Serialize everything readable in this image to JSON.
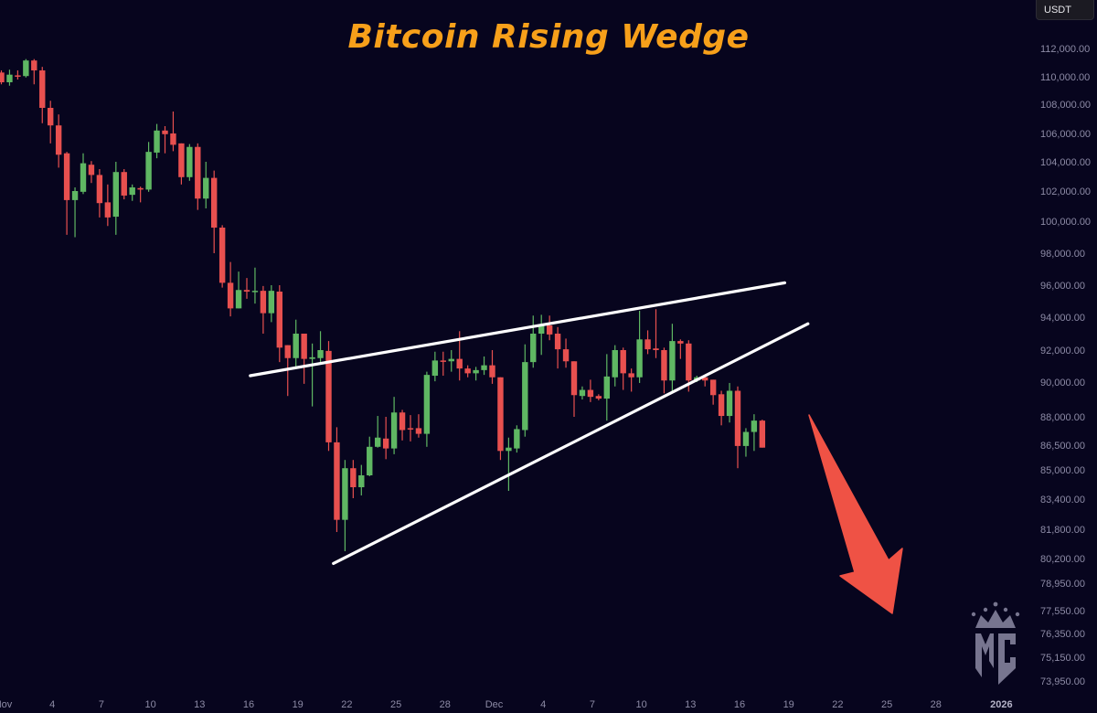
{
  "title": "Bitcoin Rising Wedge",
  "currency_label": "USDT",
  "logo_text": "MC",
  "colors": {
    "background": "#07051e",
    "up": "#5fb763",
    "down": "#e8504f",
    "title": "#f7a01a",
    "trendline": "#ffffff",
    "arrow": "#ef5245",
    "axis_text": "#8d8ba6",
    "logo": "#77758f"
  },
  "chart_data": {
    "type": "candlestick",
    "title": "Bitcoin Rising Wedge",
    "interval": "12h",
    "ylim": [
      73950,
      112000
    ],
    "y_scale": "non-uniform price scale",
    "grid": false,
    "y_ticks": [
      "112,000.00",
      "110,000.00",
      "108,000.00",
      "106,000.00",
      "104,000.00",
      "102,000.00",
      "100,000.00",
      "98,000.00",
      "96,000.00",
      "94,000.00",
      "92,000.00",
      "90,000.00",
      "88,000.00",
      "86,500.00",
      "85,000.00",
      "83,400.00",
      "81,800.00",
      "80,200.00",
      "78,950.00",
      "77,550.00",
      "76,350.00",
      "75,150.00",
      "73,950.00"
    ],
    "x_ticks": [
      "Nov",
      "4",
      "7",
      "10",
      "13",
      "16",
      "19",
      "22",
      "25",
      "28",
      "Dec",
      "4",
      "7",
      "10",
      "13",
      "16",
      "19",
      "22",
      "25",
      "28",
      "2026"
    ],
    "candle_fields": [
      "time",
      "open",
      "high",
      "low",
      "close"
    ],
    "candles": [
      [
        "2025-11-01T00:00",
        110300,
        110450,
        109450,
        109600
      ],
      [
        "2025-11-01T12:00",
        109600,
        110500,
        109350,
        110150
      ],
      [
        "2025-11-02T00:00",
        110100,
        110450,
        109800,
        110050
      ],
      [
        "2025-11-02T12:00",
        110050,
        111250,
        109950,
        111150
      ],
      [
        "2025-11-03T00:00",
        111150,
        111250,
        109450,
        110450
      ],
      [
        "2025-11-03T12:00",
        110450,
        110700,
        106700,
        107750
      ],
      [
        "2025-11-04T00:00",
        107750,
        108250,
        105300,
        106550
      ],
      [
        "2025-11-04T12:00",
        106550,
        107300,
        103600,
        104500
      ],
      [
        "2025-11-05T00:00",
        104600,
        104700,
        99150,
        101400
      ],
      [
        "2025-11-05T12:00",
        101400,
        102250,
        99000,
        102000
      ],
      [
        "2025-11-06T00:00",
        101950,
        104600,
        101800,
        103900
      ],
      [
        "2025-11-06T12:00",
        103800,
        104050,
        102550,
        103100
      ],
      [
        "2025-11-07T00:00",
        103100,
        103500,
        100250,
        101200
      ],
      [
        "2025-11-07T12:00",
        101250,
        102450,
        99700,
        100250
      ],
      [
        "2025-11-08T00:00",
        100300,
        104000,
        99150,
        103300
      ],
      [
        "2025-11-08T12:00",
        103300,
        103500,
        101450,
        101700
      ],
      [
        "2025-11-09T00:00",
        101750,
        102450,
        101350,
        102250
      ],
      [
        "2025-11-09T12:00",
        102200,
        102300,
        101250,
        102100
      ],
      [
        "2025-11-10T00:00",
        102100,
        105400,
        101950,
        104700
      ],
      [
        "2025-11-10T12:00",
        104650,
        106650,
        104250,
        106200
      ],
      [
        "2025-11-11T00:00",
        106200,
        106500,
        104600,
        105950
      ],
      [
        "2025-11-11T12:00",
        106000,
        107500,
        104750,
        105200
      ],
      [
        "2025-11-12T00:00",
        105300,
        105300,
        102450,
        102950
      ],
      [
        "2025-11-12T12:00",
        102950,
        105250,
        102700,
        105050
      ],
      [
        "2025-11-13T00:00",
        105050,
        105300,
        100750,
        101500
      ],
      [
        "2025-11-13T12:00",
        101500,
        104000,
        100850,
        102900
      ],
      [
        "2025-11-14T00:00",
        102900,
        103400,
        98000,
        99600
      ],
      [
        "2025-11-14T12:00",
        99600,
        99750,
        95850,
        96150
      ],
      [
        "2025-11-15T00:00",
        96150,
        97450,
        94050,
        94550
      ],
      [
        "2025-11-15T12:00",
        94550,
        96850,
        94550,
        95700
      ],
      [
        "2025-11-16T00:00",
        95700,
        96450,
        95150,
        95600
      ],
      [
        "2025-11-16T12:00",
        95600,
        97100,
        94850,
        95650
      ],
      [
        "2025-11-17T00:00",
        95650,
        95950,
        93000,
        94250
      ],
      [
        "2025-11-17T12:00",
        94250,
        96000,
        93700,
        95650
      ],
      [
        "2025-11-18T00:00",
        95600,
        96000,
        91250,
        92150
      ],
      [
        "2025-11-18T12:00",
        92300,
        92300,
        89200,
        91500
      ],
      [
        "2025-11-19T00:00",
        91500,
        93850,
        90850,
        93000
      ],
      [
        "2025-11-19T12:00",
        93000,
        93000,
        89900,
        91450
      ],
      [
        "2025-11-20T00:00",
        91450,
        92400,
        88600,
        91550
      ],
      [
        "2025-11-20T12:00",
        91500,
        93150,
        91200,
        92000
      ],
      [
        "2025-11-21T00:00",
        91950,
        92550,
        86150,
        86650
      ],
      [
        "2025-11-21T12:00",
        86650,
        87450,
        81650,
        82300
      ],
      [
        "2025-11-22T00:00",
        82300,
        85600,
        80600,
        85100
      ],
      [
        "2025-11-22T12:00",
        85100,
        85600,
        83450,
        84050
      ],
      [
        "2025-11-23T00:00",
        84050,
        85300,
        83600,
        84700
      ],
      [
        "2025-11-23T12:00",
        84700,
        86950,
        84650,
        86400
      ],
      [
        "2025-11-24T00:00",
        86400,
        88050,
        86350,
        86900
      ],
      [
        "2025-11-24T12:00",
        86850,
        88000,
        85650,
        86300
      ],
      [
        "2025-11-25T00:00",
        86300,
        89150,
        85950,
        88250
      ],
      [
        "2025-11-25T12:00",
        88250,
        88400,
        86750,
        87300
      ],
      [
        "2025-11-26T00:00",
        87400,
        88100,
        86700,
        87350
      ],
      [
        "2025-11-26T12:00",
        87400,
        88150,
        86900,
        87100
      ],
      [
        "2025-11-27T00:00",
        87100,
        90650,
        86400,
        90450
      ],
      [
        "2025-11-27T12:00",
        90400,
        91900,
        90050,
        91350
      ],
      [
        "2025-11-28T00:00",
        91350,
        91900,
        90400,
        91300
      ],
      [
        "2025-11-28T12:00",
        91300,
        92000,
        90650,
        91450
      ],
      [
        "2025-11-29T00:00",
        91450,
        93150,
        90100,
        90850
      ],
      [
        "2025-11-29T12:00",
        90850,
        91050,
        90300,
        90550
      ],
      [
        "2025-11-30T00:00",
        90550,
        90950,
        90100,
        90750
      ],
      [
        "2025-11-30T12:00",
        90750,
        91600,
        90450,
        91050
      ],
      [
        "2025-12-01T00:00",
        91050,
        92000,
        89900,
        90300
      ],
      [
        "2025-12-01T12:00",
        90300,
        90300,
        85600,
        86150
      ],
      [
        "2025-12-02T00:00",
        86150,
        86900,
        83850,
        86350
      ],
      [
        "2025-12-02T12:00",
        86300,
        87550,
        86050,
        87350
      ],
      [
        "2025-12-03T00:00",
        87300,
        92350,
        86950,
        91250
      ],
      [
        "2025-12-03T12:00",
        91250,
        94100,
        90900,
        93000
      ],
      [
        "2025-12-04T00:00",
        93000,
        94150,
        91700,
        93500
      ],
      [
        "2025-12-04T12:00",
        93500,
        94100,
        92600,
        92950
      ],
      [
        "2025-12-05T00:00",
        93000,
        93400,
        90850,
        92050
      ],
      [
        "2025-12-05T12:00",
        92050,
        92700,
        90900,
        91300
      ],
      [
        "2025-12-06T00:00",
        91300,
        91300,
        88000,
        89250
      ],
      [
        "2025-12-06T12:00",
        89200,
        89750,
        89000,
        89550
      ],
      [
        "2025-12-07T00:00",
        89550,
        90150,
        88850,
        89150
      ],
      [
        "2025-12-07T12:00",
        89200,
        89300,
        88950,
        89050
      ],
      [
        "2025-12-08T00:00",
        89050,
        91750,
        87800,
        90350
      ],
      [
        "2025-12-08T12:00",
        90300,
        92300,
        89750,
        92000
      ],
      [
        "2025-12-09T00:00",
        92000,
        92150,
        89550,
        90550
      ],
      [
        "2025-12-09T12:00",
        90550,
        90850,
        89450,
        90300
      ],
      [
        "2025-12-10T00:00",
        90300,
        94400,
        89950,
        92650
      ],
      [
        "2025-12-10T12:00",
        92650,
        93200,
        91750,
        92050
      ],
      [
        "2025-12-11T00:00",
        92100,
        94500,
        91500,
        92000
      ],
      [
        "2025-12-11T12:00",
        92000,
        92150,
        89350,
        90100
      ],
      [
        "2025-12-12T00:00",
        90100,
        93600,
        89350,
        92550
      ],
      [
        "2025-12-12T12:00",
        92550,
        92650,
        91450,
        92400
      ],
      [
        "2025-12-13T00:00",
        92400,
        92600,
        89450,
        90100
      ],
      [
        "2025-12-13T12:00",
        90100,
        90400,
        90000,
        90300
      ],
      [
        "2025-12-14T00:00",
        90300,
        90350,
        89750,
        90100
      ],
      [
        "2025-12-14T12:00",
        90150,
        90150,
        88700,
        89250
      ],
      [
        "2025-12-15T00:00",
        89300,
        89500,
        87550,
        88050
      ],
      [
        "2025-12-15T12:00",
        88050,
        89950,
        87700,
        89500
      ],
      [
        "2025-12-16T00:00",
        89500,
        89750,
        85100,
        86450
      ],
      [
        "2025-12-16T12:00",
        86450,
        87400,
        85800,
        87200
      ],
      [
        "2025-12-17T00:00",
        87200,
        88150,
        86150,
        87800
      ],
      [
        "2025-12-17T12:00",
        87800,
        87850,
        86350,
        86350
      ]
    ],
    "annotations": {
      "trendlines": [
        {
          "role": "upper-wedge-line",
          "from": [
            "2025-11-16T05:00",
            90400
          ],
          "to": [
            "2025-12-18T21:00",
            96150
          ]
        },
        {
          "role": "lower-wedge-line",
          "from": [
            "2025-11-21T07:00",
            79950
          ],
          "to": [
            "2025-12-20T07:00",
            93600
          ]
        }
      ],
      "arrow": {
        "direction": "down-right"
      }
    }
  }
}
